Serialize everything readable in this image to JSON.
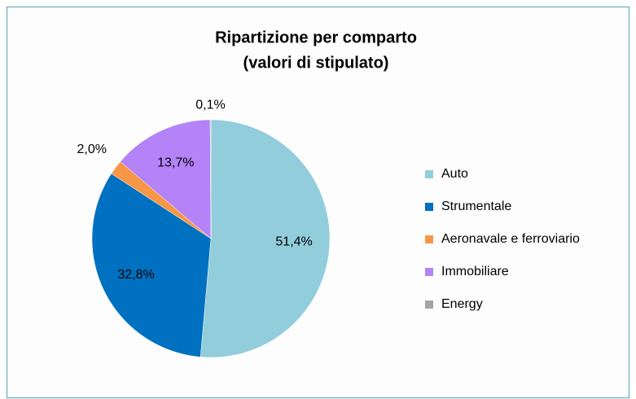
{
  "chart_data": {
    "type": "pie",
    "title": "Ripartizione per comparto",
    "subtitle": "(valori di stipulato)",
    "categories": [
      "Auto",
      "Strumentale",
      "Aeronavale e ferroviario",
      "Immobiliare",
      "Energy"
    ],
    "values": [
      51.4,
      32.8,
      2.0,
      13.7,
      0.1
    ],
    "value_labels": [
      "51,4%",
      "32,8%",
      "2,0%",
      "13,7%",
      "0,1%"
    ],
    "colors": [
      "#92cddc",
      "#0070c0",
      "#f79646",
      "#b383f7",
      "#a5a5a5"
    ],
    "legend": "right"
  }
}
